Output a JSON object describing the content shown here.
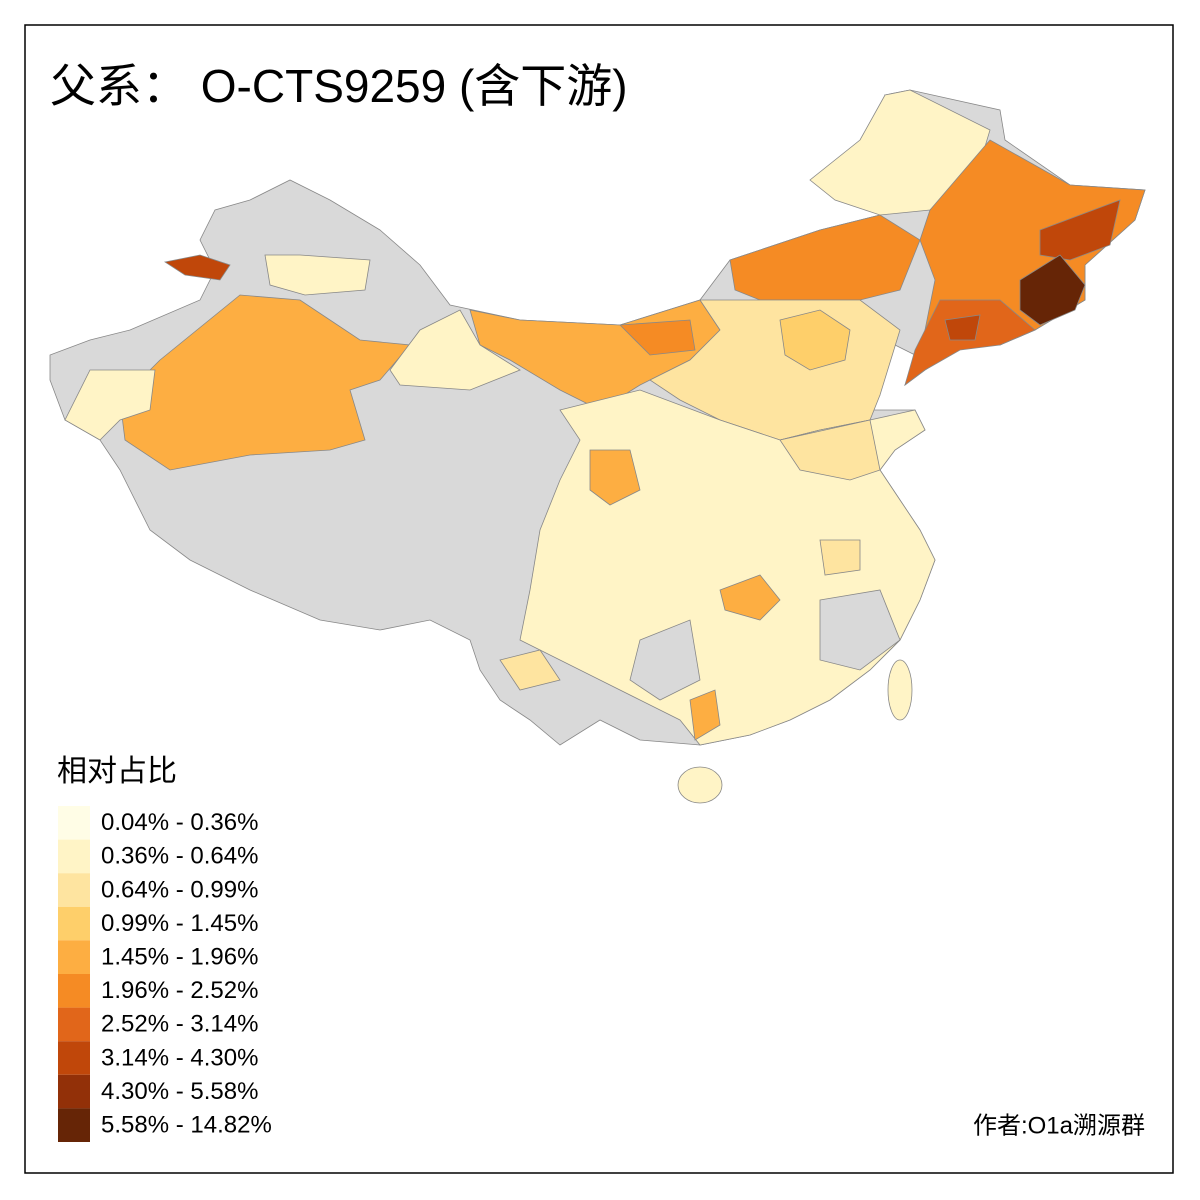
{
  "title": "父系： O-CTS9259 (含下游)",
  "legend": {
    "title": "相对占比",
    "items": [
      {
        "label": "0.04% - 0.36%",
        "color": "#fffde6"
      },
      {
        "label": "0.36% - 0.64%",
        "color": "#fff4c6"
      },
      {
        "label": "0.64% - 0.99%",
        "color": "#fee4a0"
      },
      {
        "label": "0.99% - 1.45%",
        "color": "#fecf6a"
      },
      {
        "label": "1.45% - 1.96%",
        "color": "#fdae42"
      },
      {
        "label": "1.96% - 2.52%",
        "color": "#f58b24"
      },
      {
        "label": "2.52% - 3.14%",
        "color": "#e1661a"
      },
      {
        "label": "3.14% - 4.30%",
        "color": "#c0470a"
      },
      {
        "label": "4.30% - 5.58%",
        "color": "#923008"
      },
      {
        "label": "5.58% - 14.82%",
        "color": "#662506"
      }
    ]
  },
  "author": "作者:O1a溯源群"
}
